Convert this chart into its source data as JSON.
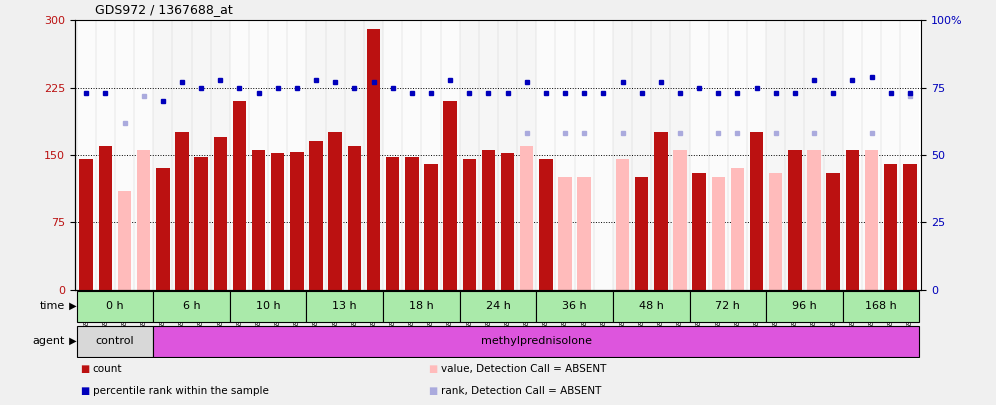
{
  "title": "GDS972 / 1367688_at",
  "samples": [
    "GSM29223",
    "GSM29224",
    "GSM29225",
    "GSM29226",
    "GSM29211",
    "GSM29212",
    "GSM29213",
    "GSM29214",
    "GSM29183",
    "GSM29184",
    "GSM29185",
    "GSM29186",
    "GSM29187",
    "GSM29188",
    "GSM29189",
    "GSM29190",
    "GSM29195",
    "GSM29196",
    "GSM29197",
    "GSM29198",
    "GSM29199",
    "GSM29200",
    "GSM29201",
    "GSM29202",
    "GSM29203",
    "GSM29204",
    "GSM29205",
    "GSM29206",
    "GSM29207",
    "GSM29208",
    "GSM29209",
    "GSM29210",
    "GSM29215",
    "GSM29216",
    "GSM29217",
    "GSM29218",
    "GSM29219",
    "GSM29220",
    "GSM29221",
    "GSM29222",
    "GSM29191",
    "GSM29192",
    "GSM29193",
    "GSM29194"
  ],
  "count_values": [
    145,
    160,
    null,
    null,
    135,
    175,
    148,
    170,
    210,
    155,
    152,
    153,
    165,
    175,
    160,
    290,
    148,
    148,
    140,
    210,
    145,
    155,
    152,
    null,
    145,
    null,
    null,
    null,
    null,
    125,
    175,
    null,
    130,
    null,
    null,
    175,
    null,
    155,
    null,
    130,
    155,
    null,
    140,
    140
  ],
  "absent_count_values": [
    null,
    null,
    110,
    155,
    null,
    null,
    null,
    null,
    null,
    null,
    null,
    null,
    null,
    null,
    null,
    null,
    null,
    null,
    null,
    null,
    null,
    null,
    null,
    160,
    null,
    125,
    125,
    null,
    145,
    null,
    null,
    155,
    null,
    125,
    135,
    null,
    130,
    null,
    155,
    null,
    null,
    155,
    null,
    130
  ],
  "percentile_values": [
    73,
    73,
    null,
    null,
    70,
    77,
    75,
    78,
    75,
    73,
    75,
    75,
    78,
    77,
    75,
    77,
    75,
    73,
    73,
    78,
    73,
    73,
    73,
    77,
    73,
    73,
    73,
    73,
    77,
    73,
    77,
    73,
    75,
    73,
    73,
    75,
    73,
    73,
    78,
    73,
    78,
    79,
    73,
    73
  ],
  "absent_percentile_values": [
    null,
    null,
    62,
    72,
    null,
    null,
    null,
    null,
    null,
    null,
    null,
    null,
    null,
    null,
    null,
    null,
    null,
    null,
    null,
    null,
    null,
    null,
    null,
    58,
    null,
    58,
    58,
    null,
    58,
    null,
    null,
    58,
    null,
    58,
    58,
    null,
    58,
    null,
    58,
    null,
    null,
    58,
    null,
    72
  ],
  "time_groups": [
    {
      "label": "0 h",
      "start": 0,
      "end": 4
    },
    {
      "label": "6 h",
      "start": 4,
      "end": 8
    },
    {
      "label": "10 h",
      "start": 8,
      "end": 12
    },
    {
      "label": "13 h",
      "start": 12,
      "end": 16
    },
    {
      "label": "18 h",
      "start": 16,
      "end": 20
    },
    {
      "label": "24 h",
      "start": 20,
      "end": 24
    },
    {
      "label": "36 h",
      "start": 24,
      "end": 28
    },
    {
      "label": "48 h",
      "start": 28,
      "end": 32
    },
    {
      "label": "72 h",
      "start": 32,
      "end": 36
    },
    {
      "label": "96 h",
      "start": 36,
      "end": 40
    },
    {
      "label": "168 h",
      "start": 40,
      "end": 44
    }
  ],
  "bar_color": "#bb1111",
  "absent_bar_color": "#ffbbbb",
  "dot_color": "#0000bb",
  "absent_dot_color": "#aaaadd",
  "ylim_left": [
    0,
    300
  ],
  "ylim_right": [
    0,
    100
  ],
  "yticks_left": [
    0,
    75,
    150,
    225,
    300
  ],
  "yticks_right": [
    0,
    25,
    50,
    75,
    100
  ],
  "hlines": [
    75,
    150,
    225
  ],
  "bg_color": "#f0f0f0",
  "plot_bg_color": "#ffffff",
  "time_row_bg": "#aaeaaa",
  "control_color": "#d8d8d8",
  "methyl_color": "#dd55dd"
}
